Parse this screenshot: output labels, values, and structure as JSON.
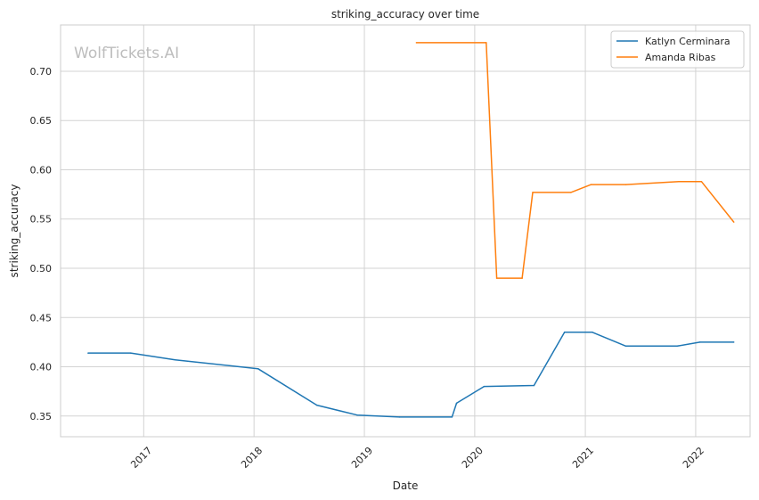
{
  "chart_data": {
    "type": "line",
    "title": "striking_accuracy over time",
    "xlabel": "Date",
    "ylabel": "striking_accuracy",
    "watermark": "WolfTickets.AI",
    "x_ticks": [
      "2017",
      "2018",
      "2019",
      "2020",
      "2021",
      "2022"
    ],
    "y_ticks": [
      "0.35",
      "0.40",
      "0.45",
      "0.50",
      "0.55",
      "0.60",
      "0.65",
      "0.70"
    ],
    "xlim": [
      "2016-04-01",
      "2022-06-30"
    ],
    "ylim": [
      0.329,
      0.747
    ],
    "grid": true,
    "legend_position": "top-right",
    "series": [
      {
        "name": "Katlyn Cerminara",
        "color": "#1f77b4",
        "points": [
          {
            "x": "2016-07-01",
            "y": 0.414
          },
          {
            "x": "2016-11-19",
            "y": 0.414
          },
          {
            "x": "2017-04-15",
            "y": 0.407
          },
          {
            "x": "2018-01-14",
            "y": 0.398
          },
          {
            "x": "2018-07-28",
            "y": 0.361
          },
          {
            "x": "2018-12-08",
            "y": 0.351
          },
          {
            "x": "2019-04-27",
            "y": 0.349
          },
          {
            "x": "2019-10-18",
            "y": 0.349
          },
          {
            "x": "2019-11-02",
            "y": 0.363
          },
          {
            "x": "2020-02-01",
            "y": 0.38
          },
          {
            "x": "2020-07-15",
            "y": 0.381
          },
          {
            "x": "2020-10-24",
            "y": 0.435
          },
          {
            "x": "2021-01-24",
            "y": 0.435
          },
          {
            "x": "2021-05-15",
            "y": 0.421
          },
          {
            "x": "2021-11-01",
            "y": 0.421
          },
          {
            "x": "2022-01-15",
            "y": 0.425
          },
          {
            "x": "2022-05-07",
            "y": 0.425
          }
        ]
      },
      {
        "name": "Amanda Ribas",
        "color": "#ff7f0e",
        "points": [
          {
            "x": "2019-06-22",
            "y": 0.729
          },
          {
            "x": "2020-02-08",
            "y": 0.729
          },
          {
            "x": "2020-03-14",
            "y": 0.49
          },
          {
            "x": "2020-06-06",
            "y": 0.49
          },
          {
            "x": "2020-07-11",
            "y": 0.577
          },
          {
            "x": "2020-11-14",
            "y": 0.577
          },
          {
            "x": "2021-01-20",
            "y": 0.585
          },
          {
            "x": "2021-05-15",
            "y": 0.585
          },
          {
            "x": "2021-11-06",
            "y": 0.588
          },
          {
            "x": "2022-01-20",
            "y": 0.588
          },
          {
            "x": "2022-05-07",
            "y": 0.547
          }
        ]
      }
    ]
  }
}
